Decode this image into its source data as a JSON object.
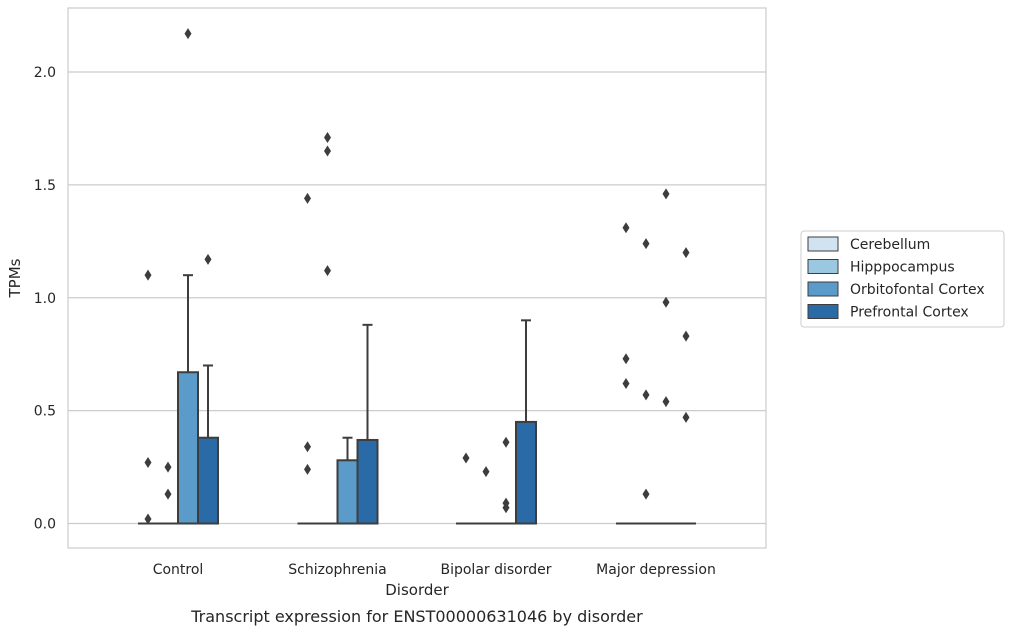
{
  "chart_data": {
    "type": "box",
    "title": "",
    "caption": "Transcript expression for ENST00000631046 by disorder",
    "xlabel": "Disorder",
    "ylabel": "TPMs",
    "ylim": [
      -0.1,
      2.28
    ],
    "yticks": [
      "0.0",
      "0.5",
      "1.0",
      "1.5",
      "2.0"
    ],
    "grid": "horizontal",
    "legend_position": "right",
    "categories": [
      "Control",
      "Schizophrenia",
      "Bipolar disorder",
      "Major depression"
    ],
    "series": [
      {
        "name": "Cerebellum",
        "color": "#d1e2f1",
        "boxes": [
          {
            "q1": 0,
            "median": 0,
            "q3": 0,
            "whisker_low": 0,
            "whisker_high": 0,
            "outliers": [
              1.1,
              0.27,
              0.02
            ]
          },
          {
            "q1": 0,
            "median": 0,
            "q3": 0,
            "whisker_low": 0,
            "whisker_high": 0,
            "outliers": [
              1.44,
              0.34,
              0.24
            ]
          },
          {
            "q1": 0,
            "median": 0,
            "q3": 0,
            "whisker_low": 0,
            "whisker_high": 0,
            "outliers": [
              0.29
            ]
          },
          {
            "q1": 0,
            "median": 0,
            "q3": 0,
            "whisker_low": 0,
            "whisker_high": 0,
            "outliers": [
              1.31,
              0.73,
              0.62
            ]
          }
        ]
      },
      {
        "name": "Hipppocampus",
        "color": "#9ac8e0",
        "boxes": [
          {
            "q1": 0,
            "median": 0,
            "q3": 0,
            "whisker_low": 0,
            "whisker_high": 0,
            "outliers": [
              0.25,
              0.13
            ]
          },
          {
            "q1": 0,
            "median": 0,
            "q3": 0,
            "whisker_low": 0,
            "whisker_high": 0,
            "outliers": [
              1.71,
              1.65,
              1.12
            ]
          },
          {
            "q1": 0,
            "median": 0,
            "q3": 0,
            "whisker_low": 0,
            "whisker_high": 0,
            "outliers": [
              0.23
            ]
          },
          {
            "q1": 0,
            "median": 0,
            "q3": 0,
            "whisker_low": 0,
            "whisker_high": 0,
            "outliers": [
              1.24,
              0.57,
              0.13
            ]
          }
        ]
      },
      {
        "name": "Orbitofontal Cortex",
        "color": "#5a9bc9",
        "boxes": [
          {
            "q1": 0,
            "median": 0,
            "q3": 0.67,
            "whisker_low": 0,
            "whisker_high": 1.1,
            "outliers": [
              2.17
            ]
          },
          {
            "q1": 0,
            "median": 0,
            "q3": 0.28,
            "whisker_low": 0,
            "whisker_high": 0.38,
            "outliers": []
          },
          {
            "q1": 0,
            "median": 0,
            "q3": 0,
            "whisker_low": 0,
            "whisker_high": 0,
            "outliers": [
              0.36,
              0.09,
              0.07
            ]
          },
          {
            "q1": 0,
            "median": 0,
            "q3": 0,
            "whisker_low": 0,
            "whisker_high": 0,
            "outliers": [
              1.46,
              0.98,
              0.54
            ]
          }
        ]
      },
      {
        "name": "Prefrontal Cortex",
        "color": "#2a6aa6",
        "boxes": [
          {
            "q1": 0,
            "median": 0,
            "q3": 0.38,
            "whisker_low": 0,
            "whisker_high": 0.7,
            "outliers": [
              1.17
            ]
          },
          {
            "q1": 0,
            "median": 0,
            "q3": 0.37,
            "whisker_low": 0,
            "whisker_high": 0.88,
            "outliers": []
          },
          {
            "q1": 0,
            "median": 0,
            "q3": 0.45,
            "whisker_low": 0,
            "whisker_high": 0.9,
            "outliers": []
          },
          {
            "q1": 0,
            "median": 0,
            "q3": 0,
            "whisker_low": 0,
            "whisker_high": 0,
            "outliers": [
              1.2,
              0.83,
              0.47
            ]
          }
        ]
      }
    ]
  }
}
